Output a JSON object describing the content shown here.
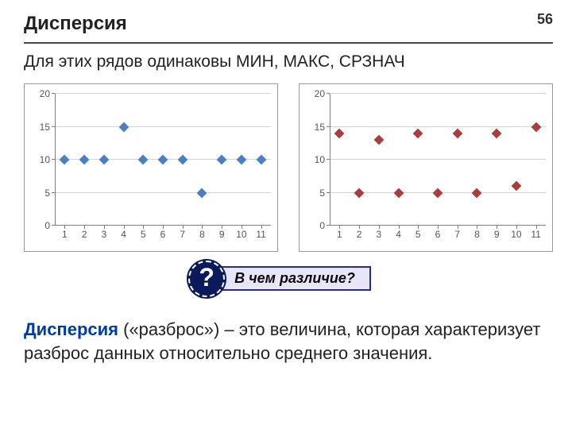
{
  "page_number": "56",
  "title": "Дисперсия",
  "subtitle": "Для этих рядов одинаковы МИН, МАКС, СРЗНАЧ",
  "callout": {
    "badge": "?",
    "text": "В чем различие?",
    "border_color": "#2a2a8a",
    "background_color": "#e6e6f8",
    "badge_bg": "#0a1a5a"
  },
  "definition": {
    "term": "Дисперсия",
    "rest": " («разброс») – это величина, которая характеризует разброс данных относительно среднего значения."
  },
  "chart_common": {
    "ylim": [
      0,
      20
    ],
    "ytick_step": 5,
    "xcats": [
      "1",
      "2",
      "3",
      "4",
      "5",
      "6",
      "7",
      "8",
      "9",
      "10",
      "11"
    ],
    "grid_color": "#d4d4d4",
    "axis_color": "#808080",
    "label_color": "#555555",
    "font_size": 12,
    "marker_size": 9
  },
  "chart_left": {
    "type": "scatter",
    "marker_color": "#4a7fc1",
    "values": [
      10,
      10,
      10,
      15,
      10,
      10,
      10,
      5,
      10,
      10,
      10
    ]
  },
  "chart_right": {
    "type": "scatter",
    "marker_color": "#aa3c3c",
    "values": [
      14,
      5,
      13,
      5,
      14,
      5,
      14,
      5,
      14,
      6,
      15
    ]
  }
}
